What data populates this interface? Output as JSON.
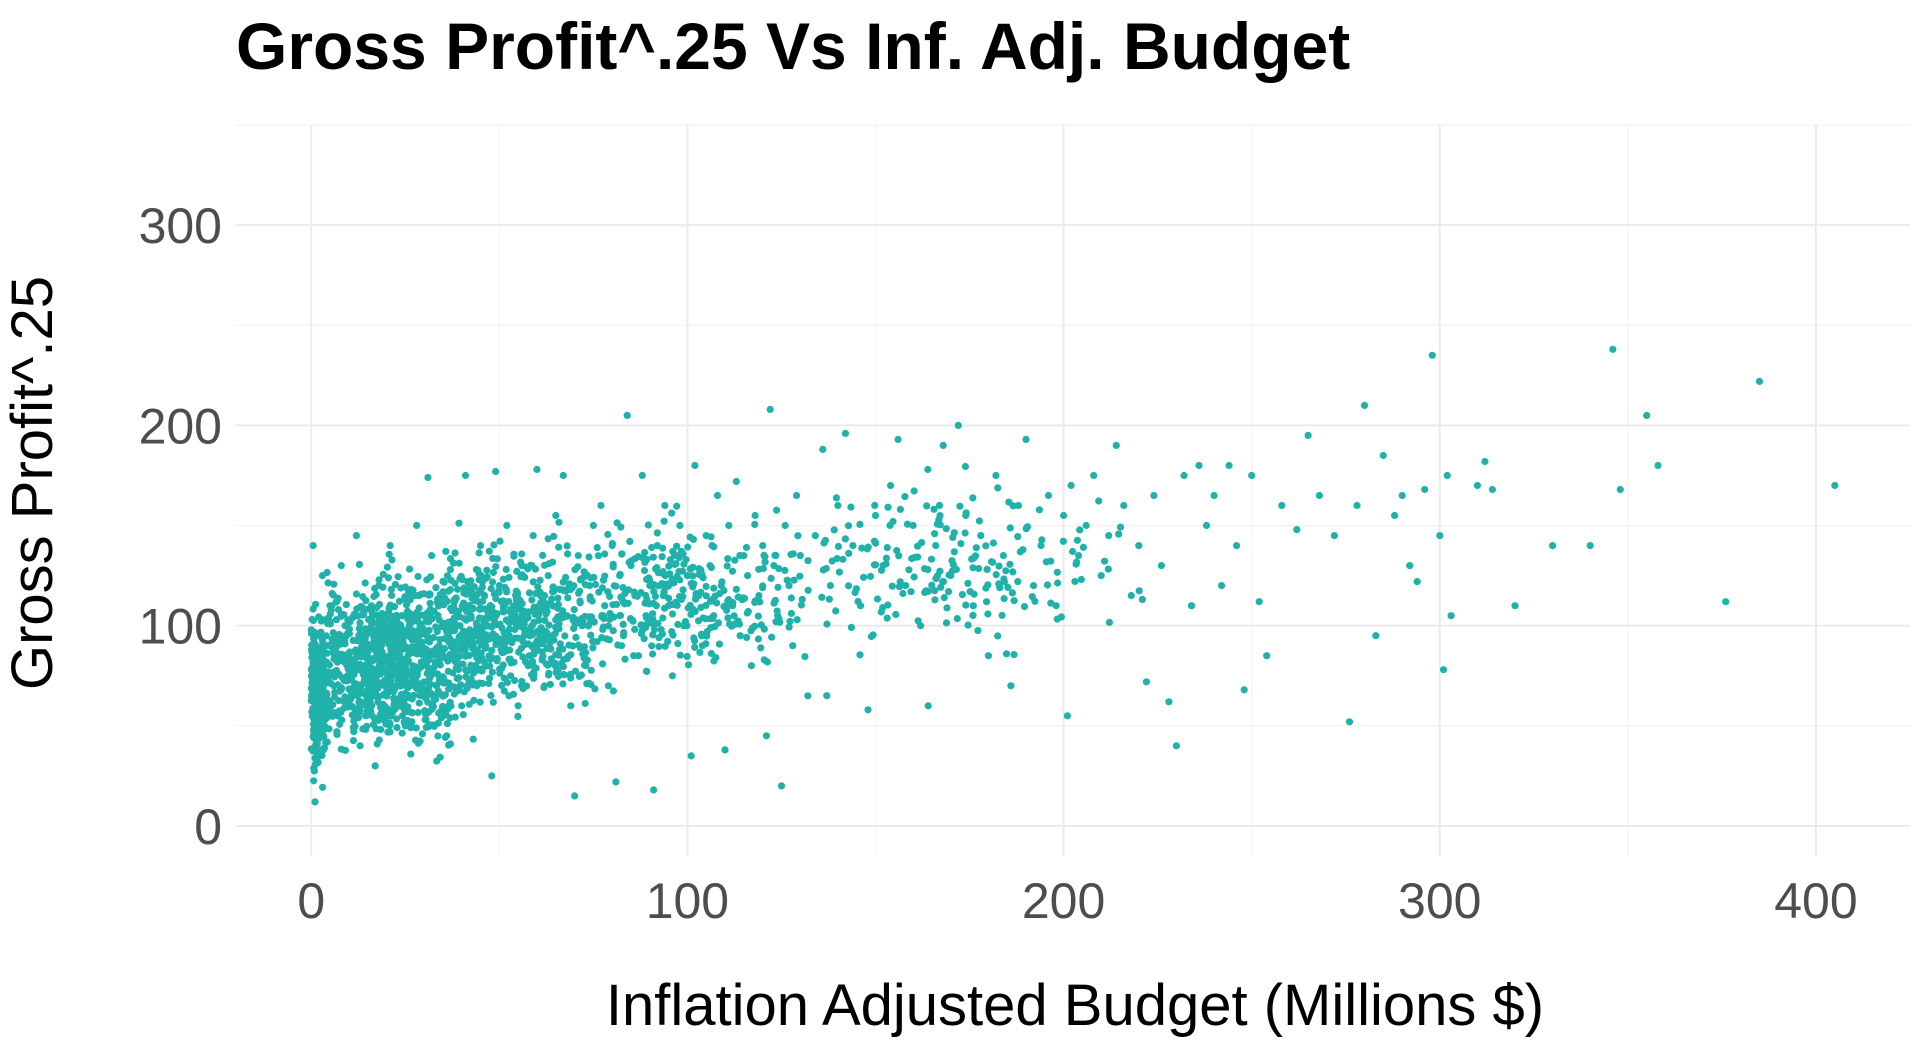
{
  "chart_data": {
    "type": "scatter",
    "title": "Gross Profit^.25 Vs Inf. Adj. Budget",
    "xlabel": "Inflation Adjusted Budget (Millions $)",
    "ylabel": "Gross Profit^.25",
    "xlim": [
      -20,
      425
    ],
    "ylim": [
      -15,
      350
    ],
    "x_ticks": [
      0,
      100,
      200,
      300,
      400
    ],
    "y_ticks": [
      0,
      100,
      200,
      300
    ],
    "x_tick_labels": [
      "0",
      "100",
      "200",
      "300",
      "400"
    ],
    "y_tick_labels": [
      "0",
      "100",
      "200",
      "300"
    ],
    "grid": true,
    "legend": "none",
    "point_color": "#20b2aa",
    "series": [
      {
        "points": [
          [
            0.5,
            140
          ],
          [
            1,
            12
          ],
          [
            2,
            48
          ],
          [
            3,
            60
          ],
          [
            1.5,
            75
          ],
          [
            4,
            90
          ],
          [
            5,
            110
          ],
          [
            3,
            125
          ],
          [
            6,
            70
          ],
          [
            7,
            55
          ],
          [
            8,
            130
          ],
          [
            9,
            100
          ],
          [
            10,
            85
          ],
          [
            11,
            65
          ],
          [
            12,
            145
          ],
          [
            13,
            40
          ],
          [
            14,
            92
          ],
          [
            15,
            78
          ],
          [
            16,
            110
          ],
          [
            17,
            30
          ],
          [
            18,
            120
          ],
          [
            19,
            95
          ],
          [
            20,
            70
          ],
          [
            21,
            140
          ],
          [
            22,
            88
          ],
          [
            23,
            60
          ],
          [
            24,
            105
          ],
          [
            25,
            50
          ],
          [
            26,
            115
          ],
          [
            27,
            80
          ],
          [
            28,
            150
          ],
          [
            29,
            99
          ],
          [
            30,
            72
          ],
          [
            31,
            174
          ],
          [
            32,
            135
          ],
          [
            33,
            65
          ],
          [
            34,
            90
          ],
          [
            35,
            112
          ],
          [
            36,
            45
          ],
          [
            37,
            128
          ],
          [
            38,
            85
          ],
          [
            39,
            100
          ],
          [
            40,
            60
          ],
          [
            41,
            175
          ],
          [
            42,
            118
          ],
          [
            43,
            95
          ],
          [
            44,
            70
          ],
          [
            45,
            140
          ],
          [
            46,
            82
          ],
          [
            47,
            105
          ],
          [
            48,
            25
          ],
          [
            49,
            177
          ],
          [
            50,
            120
          ],
          [
            51,
            90
          ],
          [
            52,
            150
          ],
          [
            53,
            75
          ],
          [
            54,
            110
          ],
          [
            55,
            60
          ],
          [
            56,
            130
          ],
          [
            57,
            98
          ],
          [
            58,
            85
          ],
          [
            59,
            145
          ],
          [
            60,
            178
          ],
          [
            61,
            115
          ],
          [
            62,
            70
          ],
          [
            63,
            125
          ],
          [
            64,
            95
          ],
          [
            65,
            155
          ],
          [
            66,
            88
          ],
          [
            67,
            175
          ],
          [
            68,
            105
          ],
          [
            69,
            60
          ],
          [
            70,
            15
          ],
          [
            71,
            135
          ],
          [
            72,
            100
          ],
          [
            73,
            80
          ],
          [
            74,
            120
          ],
          [
            75,
            150
          ],
          [
            76,
            92
          ],
          [
            77,
            160
          ],
          [
            78,
            110
          ],
          [
            79,
            70
          ],
          [
            80,
            140
          ],
          [
            81,
            22
          ],
          [
            82,
            125
          ],
          [
            83,
            95
          ],
          [
            84,
            205
          ],
          [
            85,
            130
          ],
          [
            86,
            115
          ],
          [
            87,
            85
          ],
          [
            88,
            175
          ],
          [
            89,
            105
          ],
          [
            90,
            120
          ],
          [
            91,
            18
          ],
          [
            92,
            140
          ],
          [
            93,
            98
          ],
          [
            94,
            160
          ],
          [
            95,
            110
          ],
          [
            96,
            75
          ],
          [
            97,
            135
          ],
          [
            98,
            150
          ],
          [
            99,
            100
          ],
          [
            100,
            125
          ],
          [
            101,
            35
          ],
          [
            102,
            180
          ],
          [
            103,
            115
          ],
          [
            104,
            90
          ],
          [
            105,
            145
          ],
          [
            106,
            130
          ],
          [
            107,
            105
          ],
          [
            108,
            165
          ],
          [
            109,
            120
          ],
          [
            110,
            38
          ],
          [
            111,
            150
          ],
          [
            112,
            110
          ],
          [
            113,
            172
          ],
          [
            114,
            95
          ],
          [
            115,
            135
          ],
          [
            116,
            125
          ],
          [
            117,
            80
          ],
          [
            118,
            155
          ],
          [
            119,
            115
          ],
          [
            120,
            140
          ],
          [
            121,
            45
          ],
          [
            122,
            208
          ],
          [
            123,
            130
          ],
          [
            124,
            105
          ],
          [
            125,
            20
          ],
          [
            126,
            150
          ],
          [
            127,
            120
          ],
          [
            128,
            90
          ],
          [
            129,
            165
          ],
          [
            130,
            135
          ],
          [
            132,
            65
          ],
          [
            134,
            145
          ],
          [
            136,
            188
          ],
          [
            138,
            120
          ],
          [
            140,
            160
          ],
          [
            142,
            196
          ],
          [
            144,
            140
          ],
          [
            146,
            110
          ],
          [
            148,
            58
          ],
          [
            150,
            155
          ],
          [
            152,
            130
          ],
          [
            154,
            170
          ],
          [
            156,
            193
          ],
          [
            158,
            120
          ],
          [
            160,
            150
          ],
          [
            162,
            100
          ],
          [
            164,
            60
          ],
          [
            166,
            140
          ],
          [
            168,
            190
          ],
          [
            170,
            125
          ],
          [
            172,
            200
          ],
          [
            174,
            155
          ],
          [
            176,
            110
          ],
          [
            178,
            145
          ],
          [
            180,
            85
          ],
          [
            182,
            175
          ],
          [
            184,
            135
          ],
          [
            186,
            70
          ],
          [
            188,
            160
          ],
          [
            190,
            193
          ],
          [
            192,
            120
          ],
          [
            194,
            140
          ],
          [
            196,
            165
          ],
          [
            198,
            110
          ],
          [
            200,
            155
          ],
          [
            201,
            55
          ],
          [
            202,
            170
          ],
          [
            204,
            135
          ],
          [
            206,
            150
          ],
          [
            208,
            175
          ],
          [
            210,
            125
          ],
          [
            212,
            145
          ],
          [
            214,
            190
          ],
          [
            216,
            160
          ],
          [
            218,
            115
          ],
          [
            220,
            140
          ],
          [
            222,
            72
          ],
          [
            224,
            165
          ],
          [
            226,
            130
          ],
          [
            228,
            62
          ],
          [
            230,
            40
          ],
          [
            232,
            175
          ],
          [
            234,
            110
          ],
          [
            236,
            180
          ],
          [
            238,
            150
          ],
          [
            240,
            165
          ],
          [
            242,
            120
          ],
          [
            244,
            180
          ],
          [
            246,
            140
          ],
          [
            248,
            68
          ],
          [
            250,
            175
          ],
          [
            252,
            112
          ],
          [
            254,
            85
          ],
          [
            258,
            160
          ],
          [
            262,
            148
          ],
          [
            265,
            195
          ],
          [
            268,
            165
          ],
          [
            272,
            145
          ],
          [
            276,
            52
          ],
          [
            278,
            160
          ],
          [
            280,
            210
          ],
          [
            283,
            95
          ],
          [
            285,
            185
          ],
          [
            288,
            155
          ],
          [
            290,
            165
          ],
          [
            292,
            130
          ],
          [
            294,
            122
          ],
          [
            296,
            168
          ],
          [
            298,
            235
          ],
          [
            300,
            145
          ],
          [
            301,
            78
          ],
          [
            302,
            175
          ],
          [
            303,
            105
          ],
          [
            310,
            170
          ],
          [
            312,
            182
          ],
          [
            314,
            168
          ],
          [
            320,
            110
          ],
          [
            330,
            140
          ],
          [
            340,
            140
          ],
          [
            346,
            238
          ],
          [
            348,
            168
          ],
          [
            355,
            205
          ],
          [
            358,
            180
          ],
          [
            376,
            112
          ],
          [
            385,
            222
          ],
          [
            405,
            170
          ]
        ]
      }
    ],
    "dense_clusters": [
      {
        "x_center": 20,
        "x_spread": 18,
        "y_center": 80,
        "y_spread": 24,
        "count": 900
      },
      {
        "x_center": 50,
        "x_spread": 25,
        "y_center": 100,
        "y_spread": 24,
        "count": 600
      },
      {
        "x_center": 95,
        "x_spread": 30,
        "y_center": 115,
        "y_spread": 22,
        "count": 350
      },
      {
        "x_center": 2,
        "x_spread": 2,
        "y_center": 65,
        "y_spread": 22,
        "count": 250
      },
      {
        "x_center": 170,
        "x_spread": 35,
        "y_center": 130,
        "y_spread": 25,
        "count": 200
      }
    ]
  }
}
